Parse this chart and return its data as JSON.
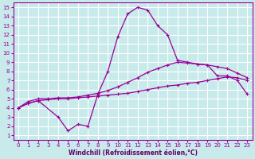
{
  "bg_color": "#c8eaea",
  "line_color": "#990099",
  "grid_color": "#ffffff",
  "xlabel": "Windchill (Refroidissement éolien,°C)",
  "xlabel_color": "#660066",
  "xlim": [
    -0.5,
    23.5
  ],
  "ylim": [
    0.5,
    15.5
  ],
  "xticks": [
    0,
    1,
    2,
    3,
    4,
    5,
    6,
    7,
    8,
    9,
    10,
    11,
    12,
    13,
    14,
    15,
    16,
    17,
    18,
    19,
    20,
    21,
    22,
    23
  ],
  "yticks": [
    1,
    2,
    3,
    4,
    5,
    6,
    7,
    8,
    9,
    10,
    11,
    12,
    13,
    14,
    15
  ],
  "curve1_x": [
    0,
    1,
    2,
    3,
    4,
    5,
    6,
    7,
    8,
    9,
    10,
    11,
    12,
    13,
    14,
    15,
    16,
    17,
    18,
    19,
    20,
    21,
    22,
    23
  ],
  "curve1_y": [
    4.0,
    4.5,
    4.8,
    4.9,
    5.0,
    5.0,
    5.1,
    5.2,
    5.3,
    5.4,
    5.5,
    5.6,
    5.8,
    6.0,
    6.2,
    6.4,
    6.5,
    6.7,
    6.8,
    7.0,
    7.2,
    7.4,
    7.3,
    7.0
  ],
  "curve2_x": [
    0,
    1,
    2,
    3,
    4,
    5,
    6,
    7,
    8,
    9,
    10,
    11,
    12,
    13,
    14,
    15,
    16,
    17,
    18,
    19,
    20,
    21,
    22,
    23
  ],
  "curve2_y": [
    4.0,
    4.7,
    5.0,
    5.0,
    5.1,
    5.1,
    5.2,
    5.4,
    5.6,
    5.9,
    6.3,
    6.8,
    7.3,
    7.9,
    8.3,
    8.7,
    9.0,
    8.9,
    8.8,
    8.7,
    8.5,
    8.3,
    7.8,
    7.3
  ],
  "curve3_x": [
    0,
    1,
    2,
    4,
    5,
    6,
    7,
    8,
    9,
    10,
    11,
    12,
    13,
    14,
    15,
    16,
    17,
    18,
    19,
    20,
    21,
    22,
    23
  ],
  "curve3_y": [
    4.0,
    4.5,
    4.8,
    3.0,
    1.5,
    2.2,
    2.0,
    5.5,
    8.0,
    11.8,
    14.3,
    15.0,
    14.7,
    13.0,
    12.0,
    9.2,
    9.0,
    8.8,
    8.7,
    7.5,
    7.5,
    7.0,
    5.5
  ]
}
